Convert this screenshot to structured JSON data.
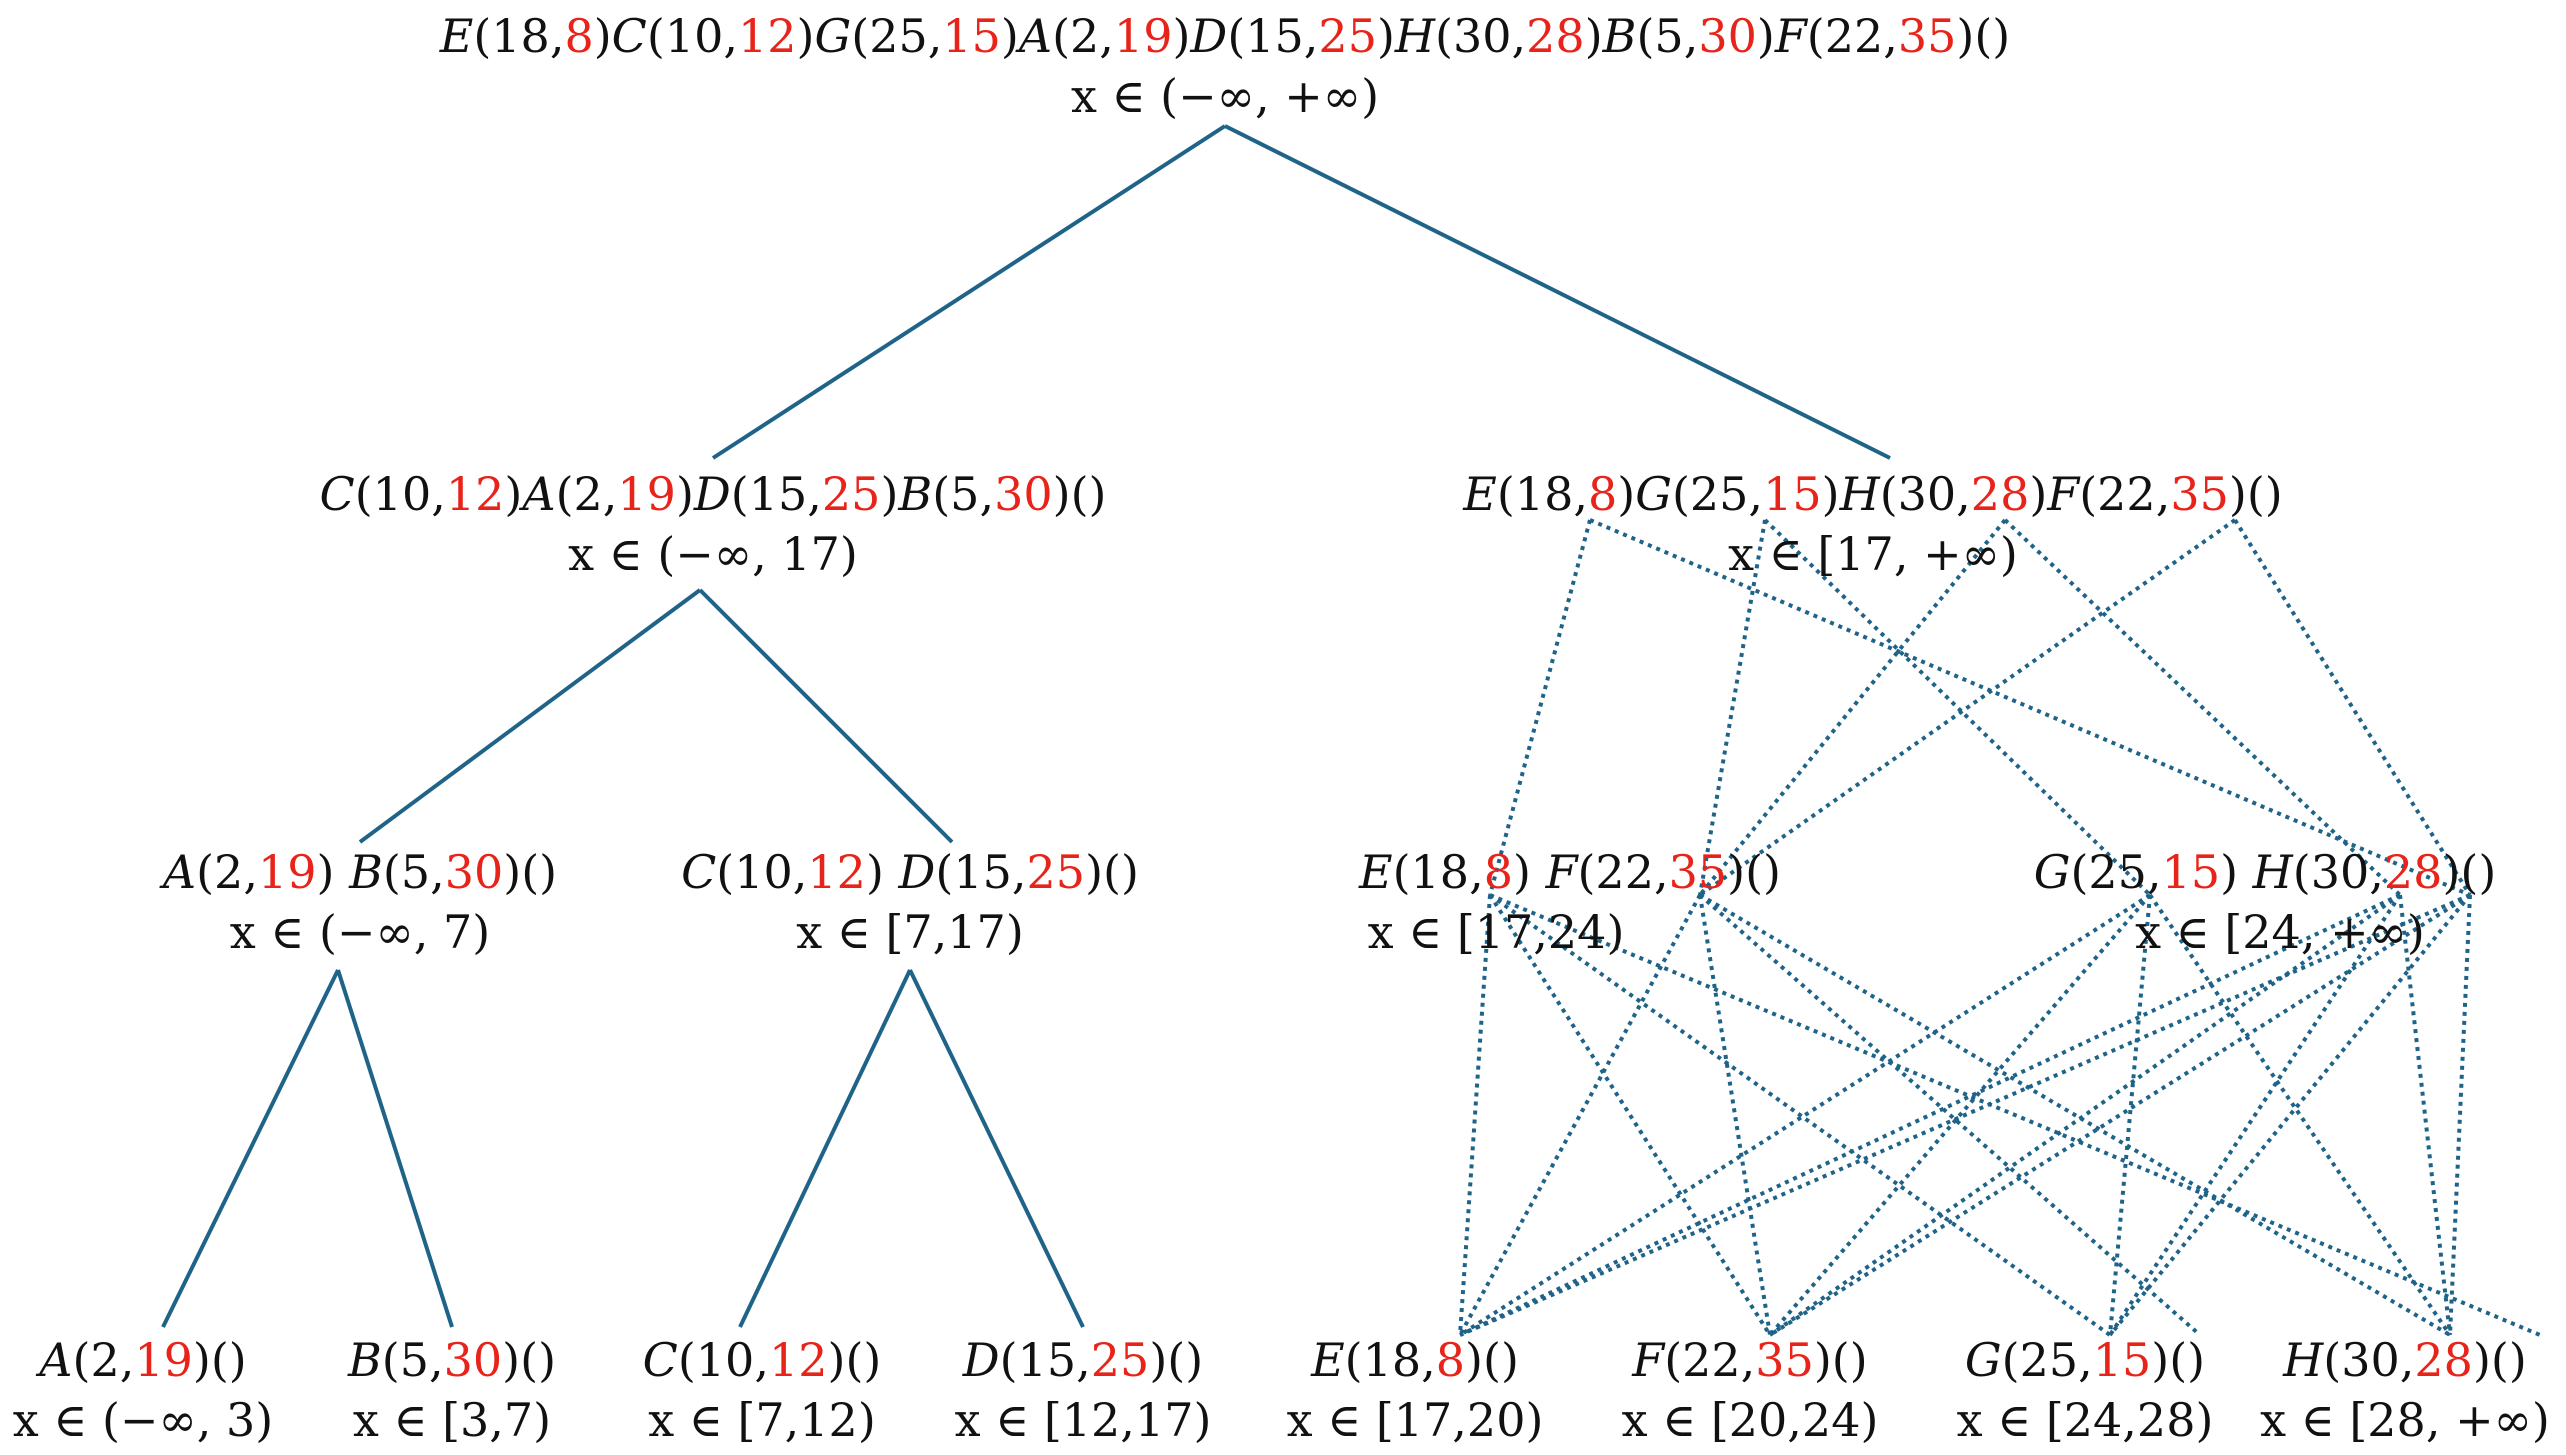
{
  "colors": {
    "edge": "#1f6388",
    "red": "#e8231a",
    "text": "#111111"
  },
  "nodes": [
    {
      "id": "root",
      "points": [
        [
          "E",
          "18",
          "8"
        ],
        [
          "C",
          "10",
          "12"
        ],
        [
          "G",
          "25",
          "15"
        ],
        [
          "A",
          "2",
          "19"
        ],
        [
          "D",
          "15",
          "25"
        ],
        [
          "H",
          "30",
          "28"
        ],
        [
          "B",
          "5",
          "30"
        ],
        [
          "F",
          "22",
          "35"
        ]
      ],
      "range": "x ∈ (−∞, +∞)"
    },
    {
      "id": "left",
      "points": [
        [
          "C",
          "10",
          "12"
        ],
        [
          "A",
          "2",
          "19"
        ],
        [
          "D",
          "15",
          "25"
        ],
        [
          "B",
          "5",
          "30"
        ]
      ],
      "range": "x ∈ (−∞, 17)"
    },
    {
      "id": "right",
      "points": [
        [
          "E",
          "18",
          "8"
        ],
        [
          "G",
          "25",
          "15"
        ],
        [
          "H",
          "30",
          "28"
        ],
        [
          "F",
          "22",
          "35"
        ]
      ],
      "range": "x ∈ [17, +∞)"
    },
    {
      "id": "ab",
      "points": [
        [
          "A",
          "2",
          "19"
        ],
        [
          "B",
          "5",
          "30"
        ]
      ],
      "range": "x ∈ (−∞, 7)"
    },
    {
      "id": "cd",
      "points": [
        [
          "C",
          "10",
          "12"
        ],
        [
          "D",
          "15",
          "25"
        ]
      ],
      "range": "x ∈ [7,17)"
    },
    {
      "id": "ef",
      "points": [
        [
          "E",
          "18",
          "8"
        ],
        [
          "F",
          "22",
          "35"
        ]
      ],
      "range": "x ∈ [17,24)"
    },
    {
      "id": "gh",
      "points": [
        [
          "G",
          "25",
          "15"
        ],
        [
          "H",
          "30",
          "28"
        ]
      ],
      "range": "x ∈ [24, +∞)"
    },
    {
      "id": "a",
      "points": [
        [
          "A",
          "2",
          "19"
        ]
      ],
      "range": "x ∈ (−∞, 3)"
    },
    {
      "id": "b",
      "points": [
        [
          "B",
          "5",
          "30"
        ]
      ],
      "range": "x ∈ [3,7)"
    },
    {
      "id": "c",
      "points": [
        [
          "C",
          "10",
          "12"
        ]
      ],
      "range": "x ∈ [7,12)"
    },
    {
      "id": "d",
      "points": [
        [
          "D",
          "15",
          "25"
        ]
      ],
      "range": "x ∈ [12,17)"
    },
    {
      "id": "e",
      "points": [
        [
          "E",
          "18",
          "8"
        ]
      ],
      "range": "x ∈ [17,20)"
    },
    {
      "id": "f",
      "points": [
        [
          "F",
          "22",
          "35"
        ]
      ],
      "range": "x ∈ [20,24)"
    },
    {
      "id": "g",
      "points": [
        [
          "G",
          "25",
          "15"
        ]
      ],
      "range": "x ∈ [24,28)"
    },
    {
      "id": "h",
      "points": [
        [
          "H",
          "30",
          "28"
        ]
      ],
      "range": "x ∈ [28, +∞)"
    }
  ]
}
